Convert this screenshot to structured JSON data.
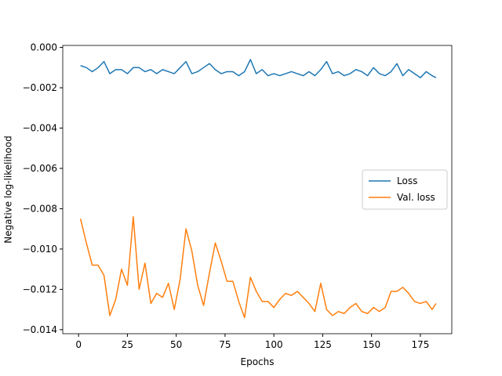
{
  "chart_data": {
    "type": "line",
    "xlabel": "Epochs",
    "ylabel": "Negative log-likelihood",
    "x": [
      1,
      4,
      7,
      10,
      13,
      16,
      19,
      22,
      25,
      28,
      31,
      34,
      37,
      40,
      43,
      46,
      49,
      52,
      55,
      58,
      61,
      64,
      67,
      70,
      73,
      76,
      79,
      82,
      85,
      88,
      91,
      94,
      97,
      100,
      103,
      106,
      109,
      112,
      115,
      118,
      121,
      124,
      127,
      130,
      133,
      136,
      139,
      142,
      145,
      148,
      151,
      154,
      157,
      160,
      163,
      166,
      169,
      172,
      175,
      178,
      181,
      183
    ],
    "series": [
      {
        "name": "Loss",
        "color": "#1f77b4",
        "values": [
          -0.0009,
          -0.001,
          -0.0012,
          -0.001,
          -0.0007,
          -0.0013,
          -0.0011,
          -0.0011,
          -0.0013,
          -0.001,
          -0.001,
          -0.0012,
          -0.0011,
          -0.0013,
          -0.0011,
          -0.0012,
          -0.0013,
          -0.001,
          -0.0007,
          -0.0013,
          -0.0012,
          -0.001,
          -0.0008,
          -0.0011,
          -0.0013,
          -0.0012,
          -0.0012,
          -0.0014,
          -0.0012,
          -0.0006,
          -0.0013,
          -0.0011,
          -0.0014,
          -0.0013,
          -0.0014,
          -0.0013,
          -0.0012,
          -0.0013,
          -0.0014,
          -0.0012,
          -0.0014,
          -0.0011,
          -0.0007,
          -0.0013,
          -0.0012,
          -0.0014,
          -0.0013,
          -0.0011,
          -0.0012,
          -0.0014,
          -0.001,
          -0.0013,
          -0.0014,
          -0.0012,
          -0.0008,
          -0.0014,
          -0.0011,
          -0.0013,
          -0.0015,
          -0.0012,
          -0.0014,
          -0.0015
        ]
      },
      {
        "name": "Val. loss",
        "color": "#ff7f0e",
        "values": [
          -0.0085,
          -0.0097,
          -0.0108,
          -0.0108,
          -0.0113,
          -0.0133,
          -0.0125,
          -0.011,
          -0.0118,
          -0.0084,
          -0.012,
          -0.0107,
          -0.0127,
          -0.0122,
          -0.0124,
          -0.0117,
          -0.013,
          -0.0115,
          -0.009,
          -0.0101,
          -0.0118,
          -0.0128,
          -0.0112,
          -0.0097,
          -0.0106,
          -0.0116,
          -0.0116,
          -0.0126,
          -0.0134,
          -0.0114,
          -0.0121,
          -0.0126,
          -0.0126,
          -0.0129,
          -0.0125,
          -0.0122,
          -0.0123,
          -0.0121,
          -0.0124,
          -0.0127,
          -0.0131,
          -0.0117,
          -0.013,
          -0.0133,
          -0.0131,
          -0.0132,
          -0.0129,
          -0.0127,
          -0.0131,
          -0.0132,
          -0.0129,
          -0.0131,
          -0.0129,
          -0.0121,
          -0.0121,
          -0.0119,
          -0.0122,
          -0.0126,
          -0.0127,
          -0.0126,
          -0.013,
          -0.0127
        ]
      }
    ],
    "xlim": [
      -8.1,
      191.1
    ],
    "xticks": [
      0,
      25,
      50,
      75,
      100,
      125,
      150,
      175
    ],
    "ylim": [
      -0.0142,
      0.0001
    ],
    "yticks": [
      {
        "value": 0,
        "label": "0.000"
      },
      {
        "value": -0.002,
        "label": "−0.002"
      },
      {
        "value": -0.004,
        "label": "−0.004"
      },
      {
        "value": -0.006,
        "label": "−0.006"
      },
      {
        "value": -0.008,
        "label": "−0.008"
      },
      {
        "value": -0.01,
        "label": "−0.010"
      },
      {
        "value": -0.012,
        "label": "−0.012"
      },
      {
        "value": -0.014,
        "label": "−0.014"
      }
    ],
    "grid": false,
    "legend": "center right"
  }
}
